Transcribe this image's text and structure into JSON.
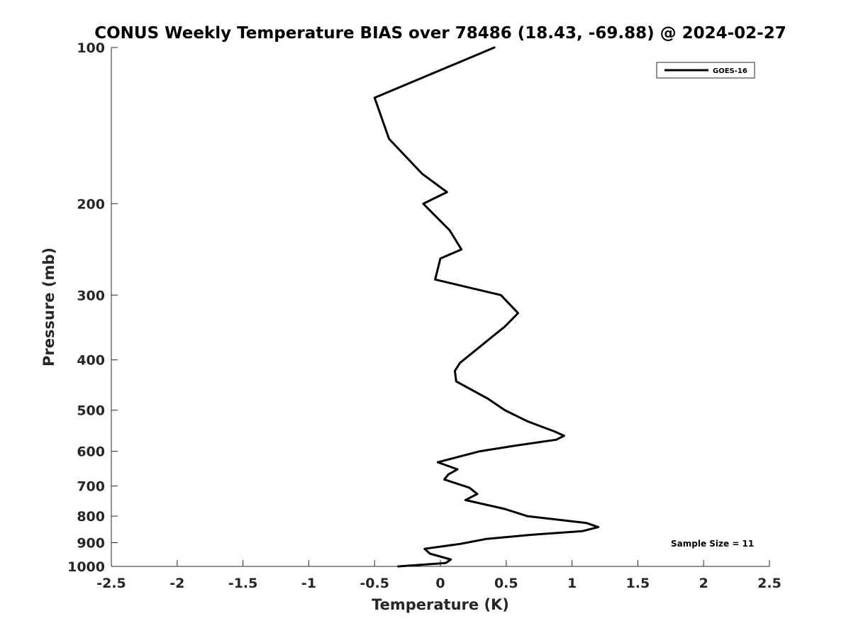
{
  "chart_data": {
    "type": "line",
    "title": "CONUS Weekly Temperature BIAS over 78486 (18.43, -69.88) @ 2024-02-27",
    "xlabel": "Temperature (K)",
    "ylabel": "Pressure (mb)",
    "xlim": [
      -2.5,
      2.5
    ],
    "ylim": [
      100,
      1000
    ],
    "yscale": "log",
    "y_reversed": true,
    "grid": false,
    "legend_position": "top-right",
    "x_ticks": [
      "-2.5",
      "-2",
      "-1.5",
      "-1",
      "-0.5",
      "0",
      "0.5",
      "1",
      "1.5",
      "2",
      "2.5"
    ],
    "y_ticks": [
      "100",
      "200",
      "300",
      "400",
      "500",
      "600",
      "700",
      "800",
      "900",
      "1000"
    ],
    "series": [
      {
        "name": "GOES-16",
        "color": "#000000",
        "points": [
          {
            "x": 0.41,
            "y": 100
          },
          {
            "x": -0.5,
            "y": 125
          },
          {
            "x": -0.39,
            "y": 150
          },
          {
            "x": -0.14,
            "y": 175
          },
          {
            "x": 0.05,
            "y": 190
          },
          {
            "x": -0.13,
            "y": 200
          },
          {
            "x": 0.07,
            "y": 225
          },
          {
            "x": 0.16,
            "y": 245
          },
          {
            "x": 0.0,
            "y": 255
          },
          {
            "x": -0.04,
            "y": 280
          },
          {
            "x": 0.46,
            "y": 300
          },
          {
            "x": 0.59,
            "y": 325
          },
          {
            "x": 0.49,
            "y": 345
          },
          {
            "x": 0.37,
            "y": 365
          },
          {
            "x": 0.23,
            "y": 390
          },
          {
            "x": 0.15,
            "y": 405
          },
          {
            "x": 0.11,
            "y": 420
          },
          {
            "x": 0.12,
            "y": 440
          },
          {
            "x": 0.36,
            "y": 475
          },
          {
            "x": 0.49,
            "y": 500
          },
          {
            "x": 0.66,
            "y": 525
          },
          {
            "x": 0.87,
            "y": 550
          },
          {
            "x": 0.94,
            "y": 560
          },
          {
            "x": 0.88,
            "y": 570
          },
          {
            "x": 0.57,
            "y": 585
          },
          {
            "x": 0.3,
            "y": 600
          },
          {
            "x": -0.02,
            "y": 630
          },
          {
            "x": 0.13,
            "y": 650
          },
          {
            "x": 0.06,
            "y": 665
          },
          {
            "x": 0.03,
            "y": 680
          },
          {
            "x": 0.22,
            "y": 705
          },
          {
            "x": 0.28,
            "y": 725
          },
          {
            "x": 0.19,
            "y": 745
          },
          {
            "x": 0.49,
            "y": 775
          },
          {
            "x": 0.66,
            "y": 800
          },
          {
            "x": 1.11,
            "y": 825
          },
          {
            "x": 1.2,
            "y": 840
          },
          {
            "x": 1.08,
            "y": 855
          },
          {
            "x": 0.67,
            "y": 870
          },
          {
            "x": 0.35,
            "y": 885
          },
          {
            "x": 0.15,
            "y": 905
          },
          {
            "x": -0.12,
            "y": 925
          },
          {
            "x": -0.08,
            "y": 945
          },
          {
            "x": 0.08,
            "y": 970
          },
          {
            "x": 0.04,
            "y": 985
          },
          {
            "x": -0.32,
            "y": 1000
          }
        ]
      }
    ],
    "annotations": [
      {
        "text": "Sample Size = 11",
        "position": "bottom-right"
      }
    ]
  }
}
